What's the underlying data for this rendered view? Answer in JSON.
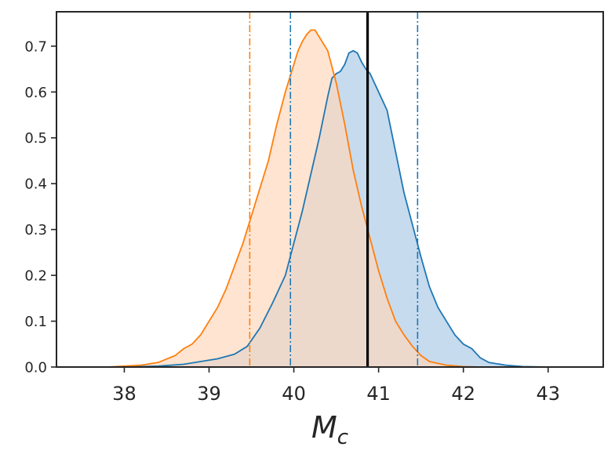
{
  "chart_data": {
    "type": "area",
    "title": "",
    "xlabel": "M",
    "xlabel_sub": "c",
    "ylabel": "",
    "xlim": [
      37.2,
      43.65
    ],
    "ylim": [
      0,
      0.775
    ],
    "xticks": [
      38,
      39,
      40,
      41,
      42,
      43
    ],
    "yticks": [
      0.0,
      0.1,
      0.2,
      0.3,
      0.4,
      0.5,
      0.6,
      0.7
    ],
    "grid": false,
    "legend": "none",
    "series": [
      {
        "color": "#1f77b4",
        "fill_color": "#c6dbee",
        "x": [
          37.5,
          38.0,
          38.4,
          38.7,
          38.9,
          39.1,
          39.3,
          39.45,
          39.6,
          39.75,
          39.9,
          40.0,
          40.1,
          40.2,
          40.3,
          40.4,
          40.45,
          40.5,
          40.55,
          40.6,
          40.65,
          40.7,
          40.75,
          40.8,
          40.85,
          40.9,
          40.95,
          41.0,
          41.1,
          41.2,
          41.3,
          41.4,
          41.5,
          41.6,
          41.7,
          41.8,
          41.9,
          42.0,
          42.1,
          42.2,
          42.3,
          42.5,
          42.7,
          43.0,
          43.3
        ],
        "y": [
          0.0,
          0.0,
          0.002,
          0.006,
          0.012,
          0.018,
          0.028,
          0.045,
          0.085,
          0.14,
          0.2,
          0.27,
          0.34,
          0.42,
          0.5,
          0.59,
          0.63,
          0.64,
          0.645,
          0.66,
          0.685,
          0.69,
          0.685,
          0.665,
          0.65,
          0.64,
          0.62,
          0.6,
          0.56,
          0.47,
          0.38,
          0.31,
          0.24,
          0.175,
          0.13,
          0.1,
          0.07,
          0.05,
          0.04,
          0.02,
          0.01,
          0.004,
          0.001,
          0.0,
          0.0
        ]
      },
      {
        "color": "#ff7f0e",
        "fill_color": "#fdd9bd",
        "x": [
          37.5,
          37.8,
          38.0,
          38.2,
          38.4,
          38.6,
          38.7,
          38.8,
          38.9,
          39.0,
          39.1,
          39.2,
          39.3,
          39.4,
          39.5,
          39.6,
          39.7,
          39.8,
          39.9,
          40.0,
          40.05,
          40.1,
          40.15,
          40.2,
          40.25,
          40.3,
          40.4,
          40.5,
          40.6,
          40.7,
          40.8,
          40.9,
          41.0,
          41.1,
          41.2,
          41.3,
          41.4,
          41.5,
          41.6,
          41.8,
          42.0,
          42.2,
          42.5
        ],
        "y": [
          0.0,
          0.0,
          0.002,
          0.004,
          0.01,
          0.025,
          0.04,
          0.05,
          0.07,
          0.1,
          0.13,
          0.17,
          0.22,
          0.27,
          0.33,
          0.39,
          0.45,
          0.53,
          0.6,
          0.66,
          0.69,
          0.71,
          0.725,
          0.735,
          0.735,
          0.72,
          0.69,
          0.62,
          0.53,
          0.43,
          0.35,
          0.28,
          0.21,
          0.15,
          0.1,
          0.07,
          0.045,
          0.025,
          0.012,
          0.004,
          0.001,
          0.0,
          0.0
        ]
      }
    ],
    "vlines": [
      {
        "x": 39.48,
        "color": "#ff7f0e",
        "style": "dashdot"
      },
      {
        "x": 39.96,
        "color": "#1f77b4",
        "style": "dashdot"
      },
      {
        "x": 41.46,
        "color": "#1f77b4",
        "style": "dashdot"
      },
      {
        "x": 40.87,
        "color": "#000000",
        "style": "solid"
      }
    ]
  }
}
